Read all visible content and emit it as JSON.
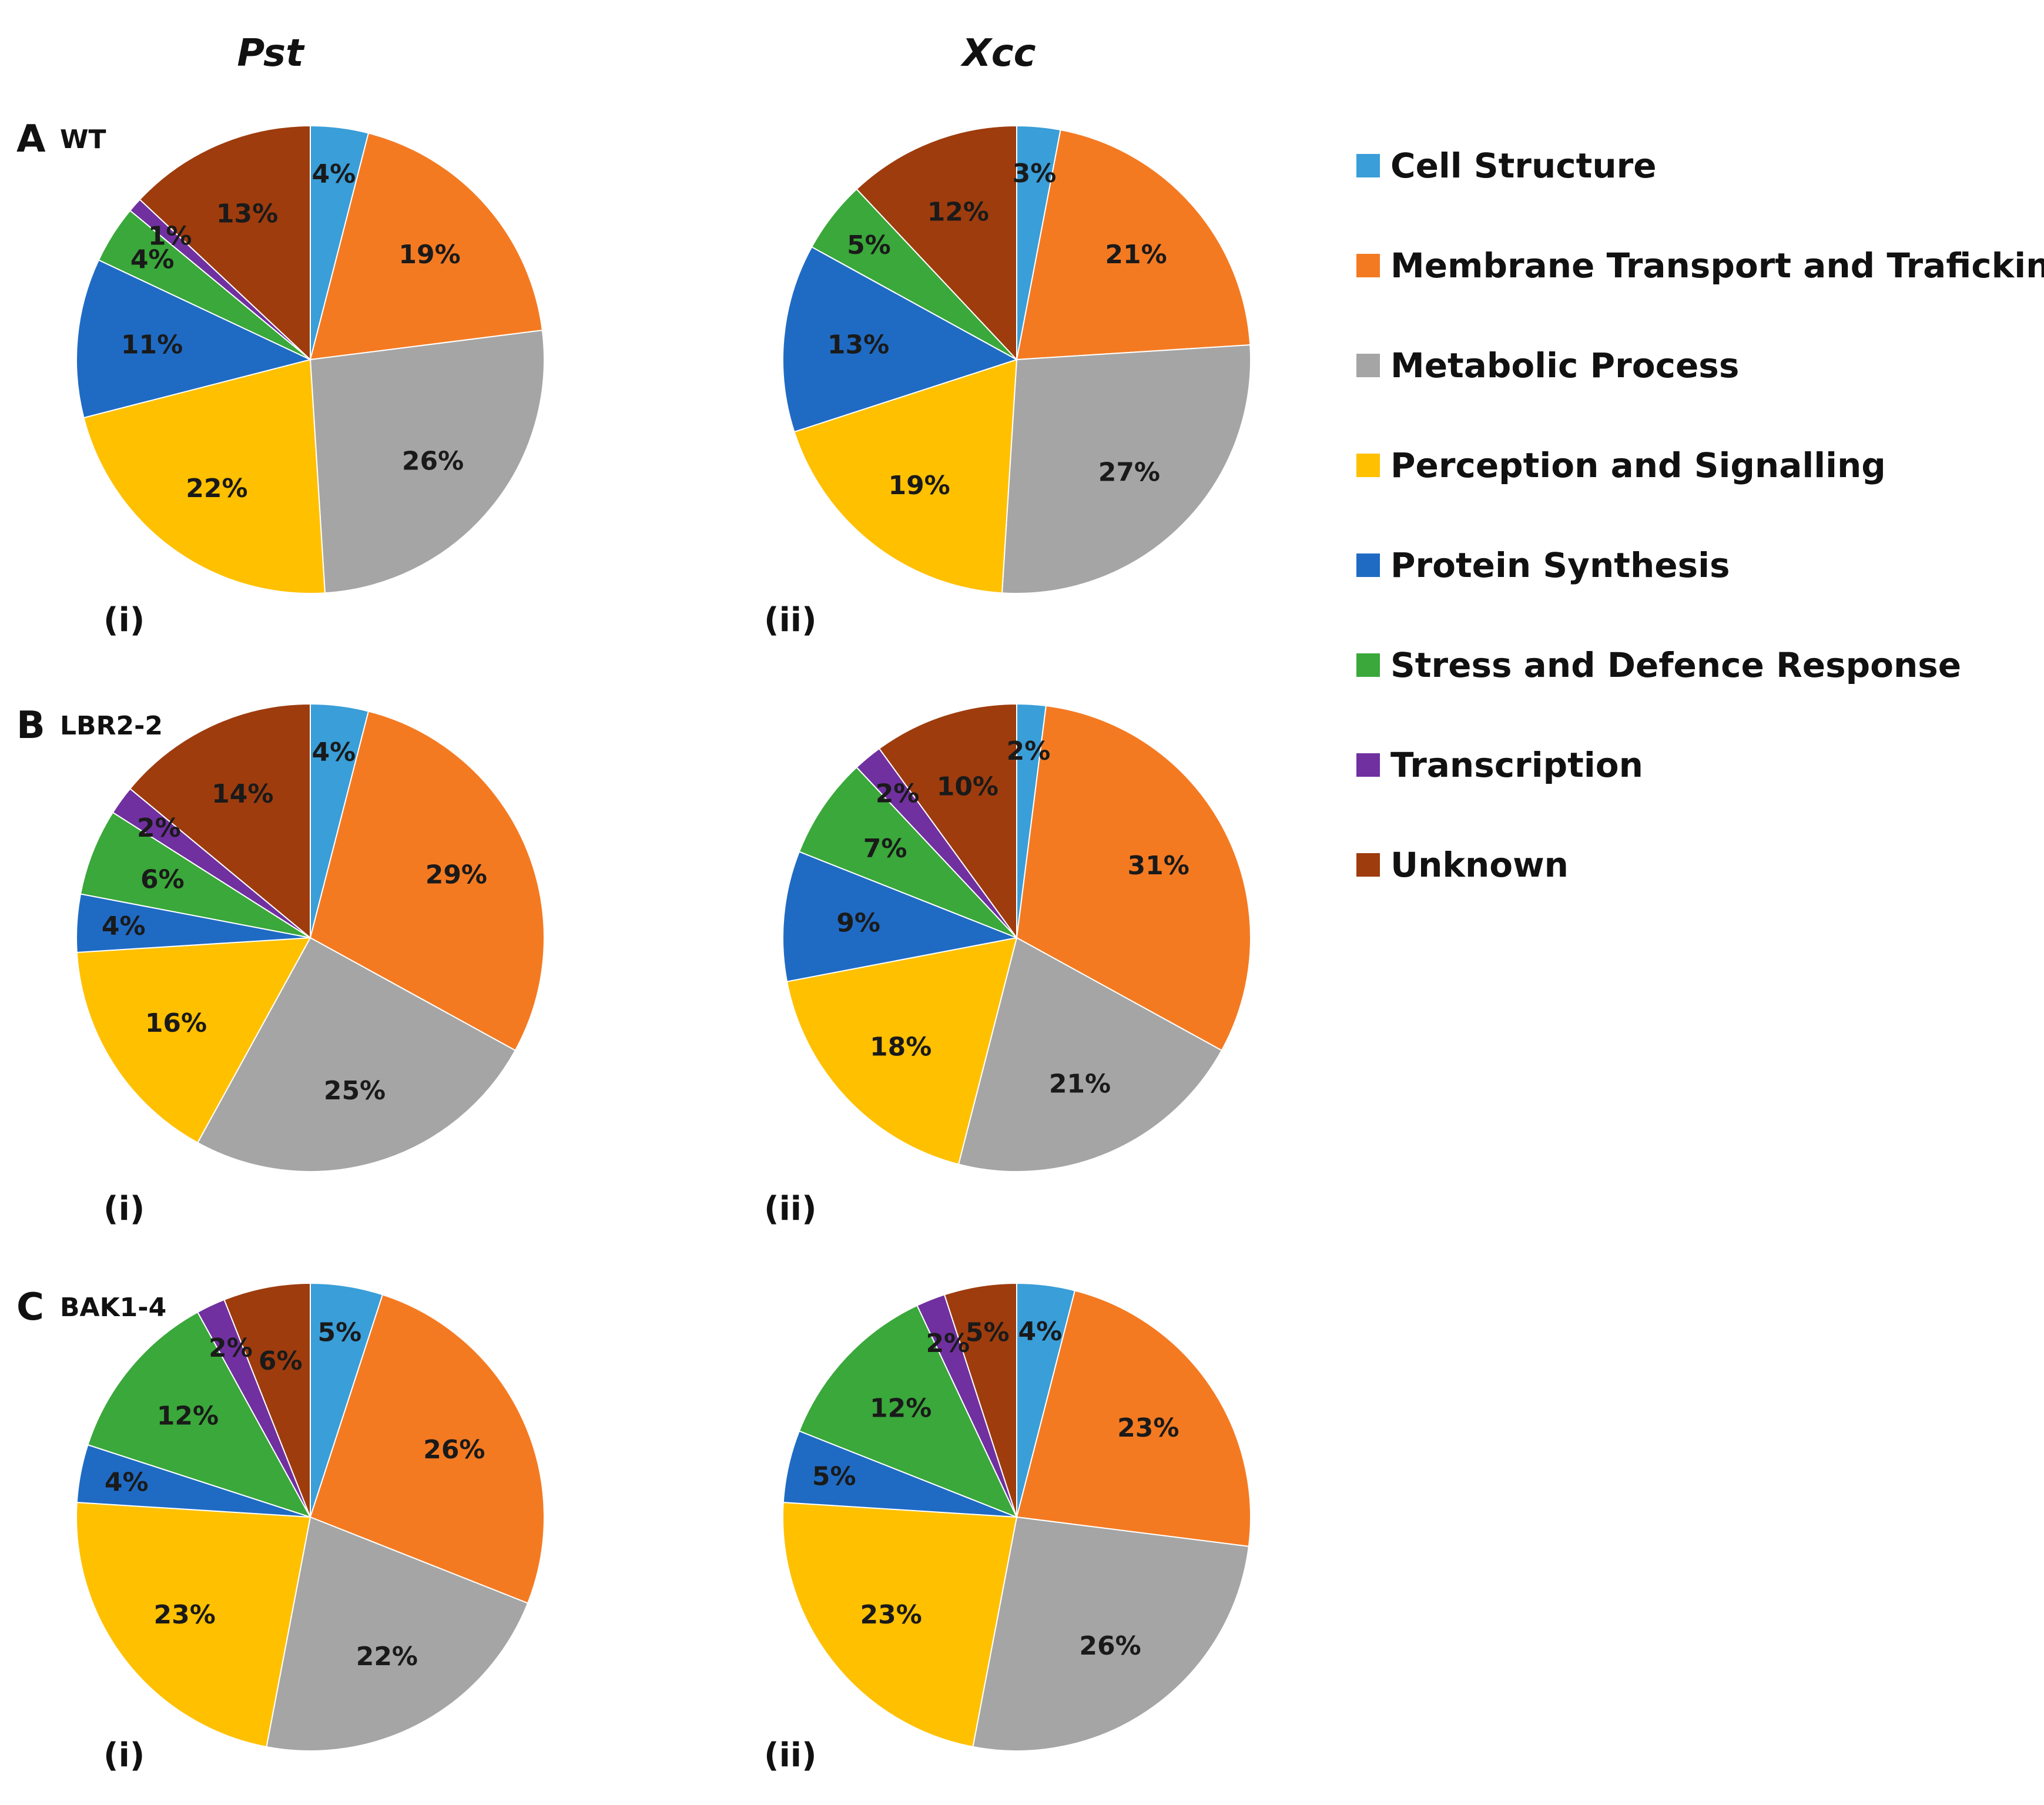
{
  "chart_data": {
    "type": "pie",
    "columns": [
      "Pst",
      "Xcc"
    ],
    "rows": [
      {
        "letter": "A",
        "name": "WT"
      },
      {
        "letter": "B",
        "name": "LBR2-2"
      },
      {
        "letter": "C",
        "name": "BAK1-4"
      }
    ],
    "panel_labels": [
      "(i)",
      "(ii)"
    ],
    "legend": [
      {
        "label": "Cell Structure",
        "color": "#3a9ed8"
      },
      {
        "label": "Membrane Transport and Traficking",
        "color": "#f47a22"
      },
      {
        "label": "Metabolic Process",
        "color": "#a5a5a5"
      },
      {
        "label": "Perception and Signalling",
        "color": "#ffc000"
      },
      {
        "label": "Protein Synthesis",
        "color": "#1f6bc4"
      },
      {
        "label": "Stress and Defence Response",
        "color": "#3aa83a"
      },
      {
        "label": "Transcription",
        "color": "#7030a0"
      },
      {
        "label": "Unknown",
        "color": "#9e3c0e"
      }
    ],
    "pies": [
      {
        "row": "WT",
        "column": "Pst",
        "panel": "(i)",
        "values": [
          4,
          19,
          26,
          22,
          11,
          4,
          1,
          13
        ],
        "labels": [
          "4%",
          "19%",
          "26%",
          "22%",
          "11%",
          "4%",
          "1%",
          "13%"
        ]
      },
      {
        "row": "WT",
        "column": "Xcc",
        "panel": "(ii)",
        "values": [
          3,
          21,
          27,
          19,
          13,
          5,
          0,
          12
        ],
        "labels": [
          "3%",
          "21%",
          "27%",
          "19%",
          "13%",
          "5%",
          "",
          "12%"
        ]
      },
      {
        "row": "LBR2-2",
        "column": "Pst",
        "panel": "(i)",
        "values": [
          4,
          29,
          25,
          16,
          4,
          6,
          2,
          14
        ],
        "labels": [
          "4%",
          "29%",
          "25%",
          "16%",
          "4%",
          "6%",
          "2%",
          "14%"
        ]
      },
      {
        "row": "LBR2-2",
        "column": "Xcc",
        "panel": "(ii)",
        "values": [
          2,
          31,
          21,
          18,
          9,
          7,
          2,
          10
        ],
        "labels": [
          "2%",
          "31%",
          "21%",
          "18%",
          "9%",
          "7%",
          "2%",
          "10%"
        ]
      },
      {
        "row": "BAK1-4",
        "column": "Pst",
        "panel": "(i)",
        "values": [
          5,
          26,
          22,
          23,
          4,
          12,
          2,
          6
        ],
        "labels": [
          "5%",
          "26%",
          "22%",
          "23%",
          "4%",
          "12%",
          "2%",
          "6%"
        ]
      },
      {
        "row": "BAK1-4",
        "column": "Xcc",
        "panel": "(ii)",
        "values": [
          4,
          23,
          26,
          23,
          5,
          12,
          2,
          5
        ],
        "labels": [
          "4%",
          "23%",
          "26%",
          "23%",
          "5%",
          "12%",
          "2%",
          "5%"
        ]
      }
    ]
  }
}
